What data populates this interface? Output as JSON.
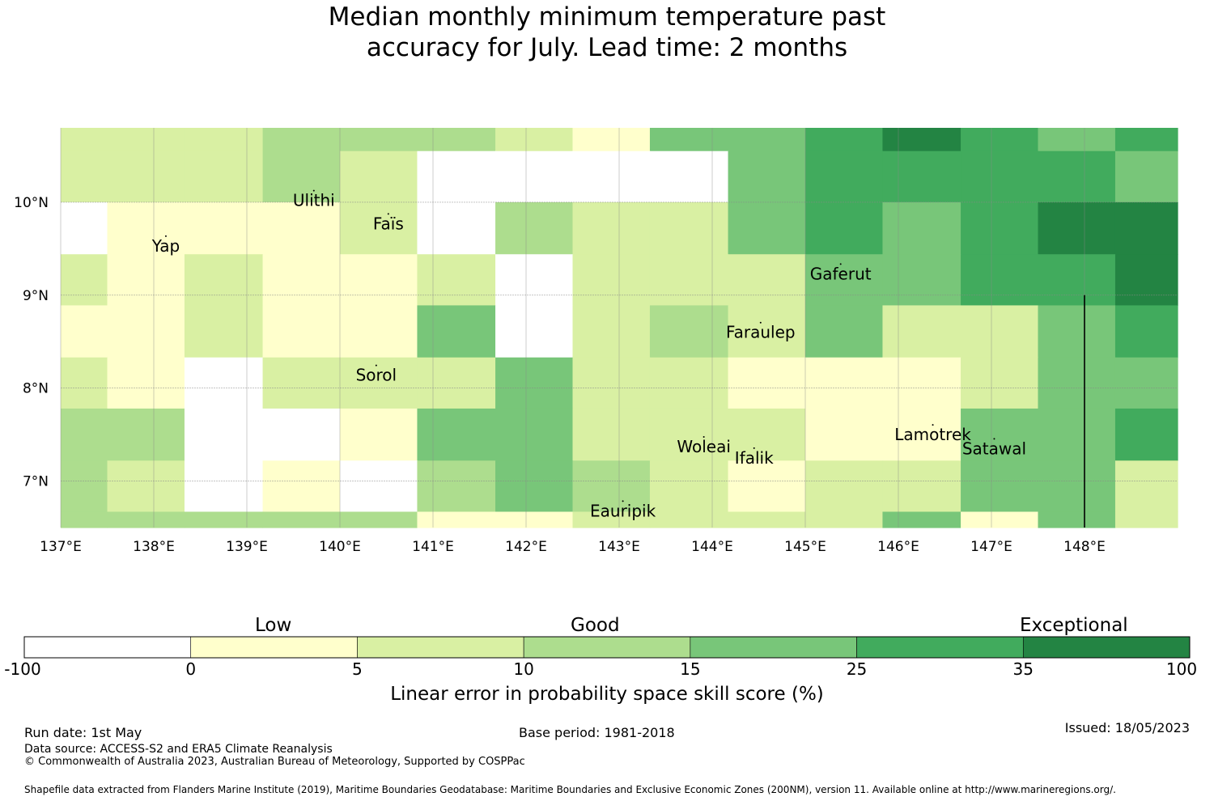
{
  "title": {
    "line1": "Median monthly minimum temperature past",
    "line2": "accuracy for July. Lead time: 2 months"
  },
  "map": {
    "lon_range": [
      137.0,
      149.0
    ],
    "lat_range": [
      6.5,
      10.8
    ],
    "lon_ticks": [
      {
        "value": 137,
        "label": "137°E"
      },
      {
        "value": 138,
        "label": "138°E"
      },
      {
        "value": 139,
        "label": "139°E"
      },
      {
        "value": 140,
        "label": "140°E"
      },
      {
        "value": 141,
        "label": "141°E"
      },
      {
        "value": 142,
        "label": "142°E"
      },
      {
        "value": 143,
        "label": "143°E"
      },
      {
        "value": 144,
        "label": "144°E"
      },
      {
        "value": 145,
        "label": "145°E"
      },
      {
        "value": 146,
        "label": "146°E"
      },
      {
        "value": 147,
        "label": "147°E"
      },
      {
        "value": 148,
        "label": "148°E"
      }
    ],
    "lat_ticks": [
      {
        "value": 10,
        "label": "10°N"
      },
      {
        "value": 9,
        "label": "9°N"
      },
      {
        "value": 8,
        "label": "8°N"
      },
      {
        "value": 7,
        "label": "7°N"
      }
    ],
    "grid_lines": true,
    "grid": {
      "lon_edges": [
        137.0,
        137.5,
        138.33,
        139.17,
        140.0,
        140.83,
        141.67,
        142.5,
        143.33,
        144.17,
        145.0,
        145.83,
        146.67,
        147.5,
        148.33,
        149.0
      ],
      "lat_edges": [
        10.8,
        10.55,
        10.0,
        9.44,
        8.89,
        8.33,
        7.78,
        7.22,
        6.67,
        6.5
      ],
      "categories": [
        [
          2,
          2,
          2,
          3,
          3,
          3,
          2,
          1,
          4,
          4,
          5,
          6,
          5,
          4,
          5
        ],
        [
          2,
          2,
          2,
          3,
          2,
          0,
          0,
          0,
          0,
          4,
          5,
          5,
          5,
          5,
          4
        ],
        [
          0,
          1,
          1,
          1,
          2,
          0,
          3,
          2,
          2,
          4,
          5,
          4,
          5,
          6,
          6
        ],
        [
          2,
          1,
          2,
          1,
          1,
          2,
          0,
          2,
          2,
          2,
          4,
          4,
          5,
          5,
          6
        ],
        [
          1,
          1,
          2,
          1,
          1,
          4,
          0,
          2,
          3,
          2,
          4,
          2,
          2,
          4,
          5
        ],
        [
          2,
          1,
          0,
          2,
          2,
          2,
          4,
          2,
          2,
          1,
          1,
          1,
          2,
          4,
          4
        ],
        [
          3,
          3,
          0,
          0,
          1,
          4,
          4,
          2,
          2,
          2,
          1,
          1,
          4,
          4,
          5
        ],
        [
          3,
          2,
          0,
          1,
          0,
          3,
          4,
          3,
          2,
          1,
          2,
          2,
          4,
          4,
          2
        ],
        [
          3,
          3,
          3,
          3,
          3,
          1,
          1,
          2,
          2,
          2,
          2,
          4,
          1,
          4,
          2
        ]
      ],
      "category_colors": [
        "#ffffff",
        "#ffffcc",
        "#d9f0a3",
        "#addd8e",
        "#78c679",
        "#41ab5d",
        "#238443"
      ]
    },
    "places": [
      {
        "name": "Ulithi",
        "lon": 139.72,
        "lat": 10.02
      },
      {
        "name": "Faïs",
        "lon": 140.52,
        "lat": 9.77
      },
      {
        "name": "Yap",
        "lon": 138.13,
        "lat": 9.53
      },
      {
        "name": "Gaferut",
        "lon": 145.38,
        "lat": 9.23
      },
      {
        "name": "Faraulep",
        "lon": 144.52,
        "lat": 8.6
      },
      {
        "name": "Sorol",
        "lon": 140.39,
        "lat": 8.14
      },
      {
        "name": "Woleai",
        "lon": 143.91,
        "lat": 7.37
      },
      {
        "name": "Lamotrek",
        "lon": 146.37,
        "lat": 7.5
      },
      {
        "name": "Satawal",
        "lon": 147.03,
        "lat": 7.35
      },
      {
        "name": "Ifalik",
        "lon": 144.45,
        "lat": 7.25
      },
      {
        "name": "Eauripik",
        "lon": 143.04,
        "lat": 6.68
      }
    ],
    "place_labels": {
      "Ulithi": "Ulithi",
      "Fais": "Faïs",
      "Yap": "Yap",
      "Gaferut": "Gaferut",
      "Faraulep": "Faraulep",
      "Sorol": "Sorol",
      "Woleai": "Woleai",
      "Lamotrek": "Lamotrek",
      "Satawal": "Satawal",
      "Ifalik": "Ifalik",
      "Eauripik": "Eauripik"
    },
    "boundary_line": {
      "lon": 148.0,
      "lat_from": 6.5,
      "lat_to": 9.0
    }
  },
  "colorbar": {
    "category_labels": {
      "low": "Low",
      "good": "Good",
      "exceptional": "Exceptional"
    },
    "bins": [
      {
        "from": "-100",
        "to": "0",
        "color": "#ffffff"
      },
      {
        "from": "0",
        "to": "5",
        "color": "#ffffcc"
      },
      {
        "from": "5",
        "to": "10",
        "color": "#d9f0a3"
      },
      {
        "from": "10",
        "to": "15",
        "color": "#addd8e"
      },
      {
        "from": "15",
        "to": "25",
        "color": "#78c679"
      },
      {
        "from": "25",
        "to": "35",
        "color": "#41ab5d"
      },
      {
        "from": "35",
        "to": "100",
        "color": "#238443"
      }
    ],
    "tick_labels": [
      "-100",
      "0",
      "5",
      "10",
      "15",
      "25",
      "35",
      "100"
    ],
    "label": "Linear error in probability space skill score (%)"
  },
  "footer": {
    "run_date": "Run date: 1st May",
    "base_period": "Base period: 1981-2018",
    "issued": "Issued: 18/05/2023",
    "data_source": "Data source: ACCESS-S2 and ERA5 Climate Reanalysis",
    "copyright": "© Commonwealth of Australia 2023, Australian Bureau of Meteorology, Supported by COSPPac",
    "shapefile_note": "Shapefile data extracted from Flanders Marine Institute (2019), Maritime Boundaries Geodatabase: Maritime Boundaries and Exclusive Economic Zones (200NM), version 11. Available online at http://www.marineregions.org/."
  }
}
